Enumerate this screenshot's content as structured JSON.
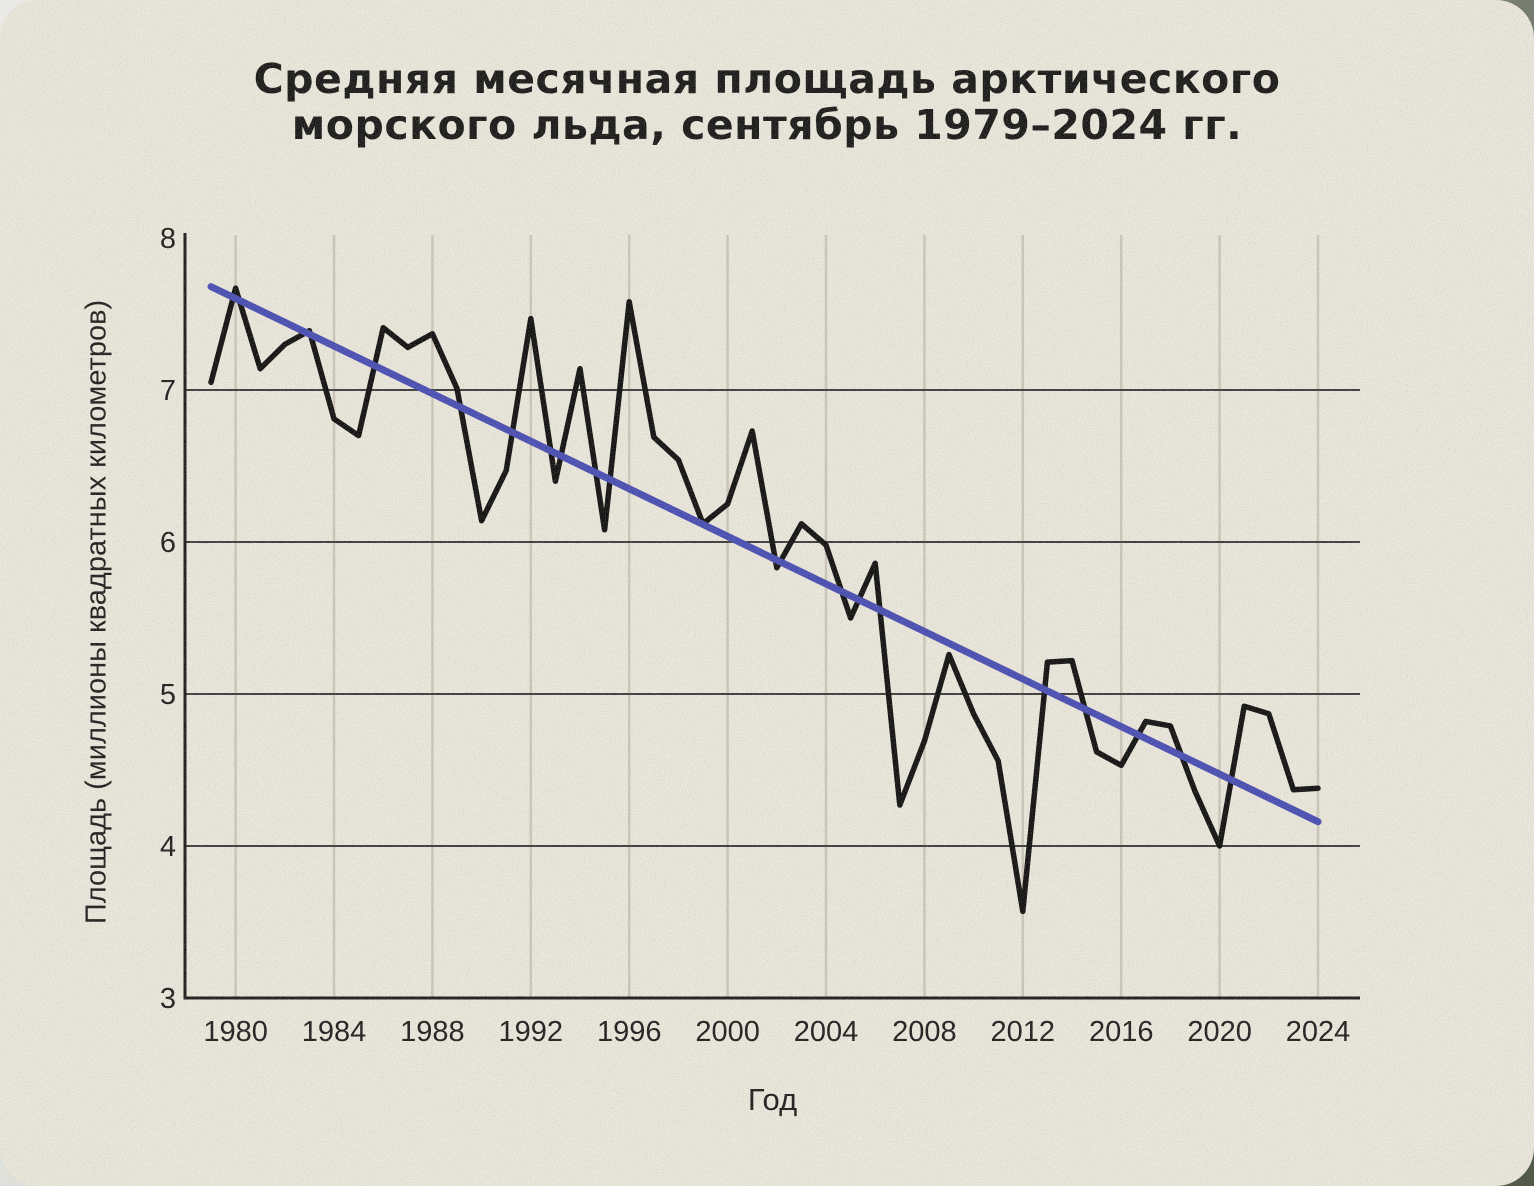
{
  "colors": {
    "card_background": "#ece9de",
    "title_text": "#161616",
    "axis_text": "#1c1c1c",
    "data_line": "#0e0e0e",
    "trend_line": "#474cb4",
    "h_gridline": "#3b3b3b",
    "v_gridline": "#cdc8bb",
    "axis_line": "#1a1a1a"
  },
  "chart_data": {
    "type": "line",
    "title": "Средняя месячная площадь арктического морского льда, сентябрь 1979–2024 гг.",
    "title_line1": "Средняя месячная площадь арктического",
    "title_line2": "морского льда, сентябрь 1979–2024 гг.",
    "xlabel": "Год",
    "ylabel": "Площадь (миллионы квадратных километров)",
    "xlim": [
      1979,
      2024
    ],
    "ylim": [
      3,
      8
    ],
    "xticks": [
      1980,
      1984,
      1988,
      1992,
      1996,
      2000,
      2004,
      2008,
      2012,
      2016,
      2020,
      2024
    ],
    "yticks": [
      8,
      7,
      6,
      5,
      4,
      3
    ],
    "grid": {
      "horizontal_values": [
        4,
        5,
        6,
        7
      ],
      "vertical_at_xticks": true
    },
    "legend_position": "none",
    "x": [
      1979,
      1980,
      1981,
      1982,
      1983,
      1984,
      1985,
      1986,
      1987,
      1988,
      1989,
      1990,
      1991,
      1992,
      1993,
      1994,
      1995,
      1996,
      1997,
      1998,
      1999,
      2000,
      2001,
      2002,
      2003,
      2004,
      2005,
      2006,
      2007,
      2008,
      2009,
      2010,
      2011,
      2012,
      2013,
      2014,
      2015,
      2016,
      2017,
      2018,
      2019,
      2020,
      2021,
      2022,
      2023,
      2024
    ],
    "series": [
      {
        "name": "september-sea-ice-extent",
        "type": "line",
        "color_key": "data_line",
        "values": [
          7.05,
          7.67,
          7.14,
          7.3,
          7.39,
          6.81,
          6.7,
          7.41,
          7.28,
          7.37,
          7.01,
          6.14,
          6.47,
          7.47,
          6.4,
          7.14,
          6.08,
          7.58,
          6.69,
          6.54,
          6.12,
          6.25,
          6.73,
          5.83,
          6.12,
          5.98,
          5.5,
          5.86,
          4.27,
          4.69,
          5.26,
          4.87,
          4.56,
          3.57,
          5.21,
          5.22,
          4.62,
          4.53,
          4.82,
          4.79,
          4.36,
          4.0,
          4.92,
          4.87,
          4.37,
          4.38
        ]
      },
      {
        "name": "linear-trend",
        "type": "trend",
        "color_key": "trend_line",
        "x": [
          1979,
          2024
        ],
        "values": [
          7.68,
          4.16
        ]
      }
    ]
  }
}
